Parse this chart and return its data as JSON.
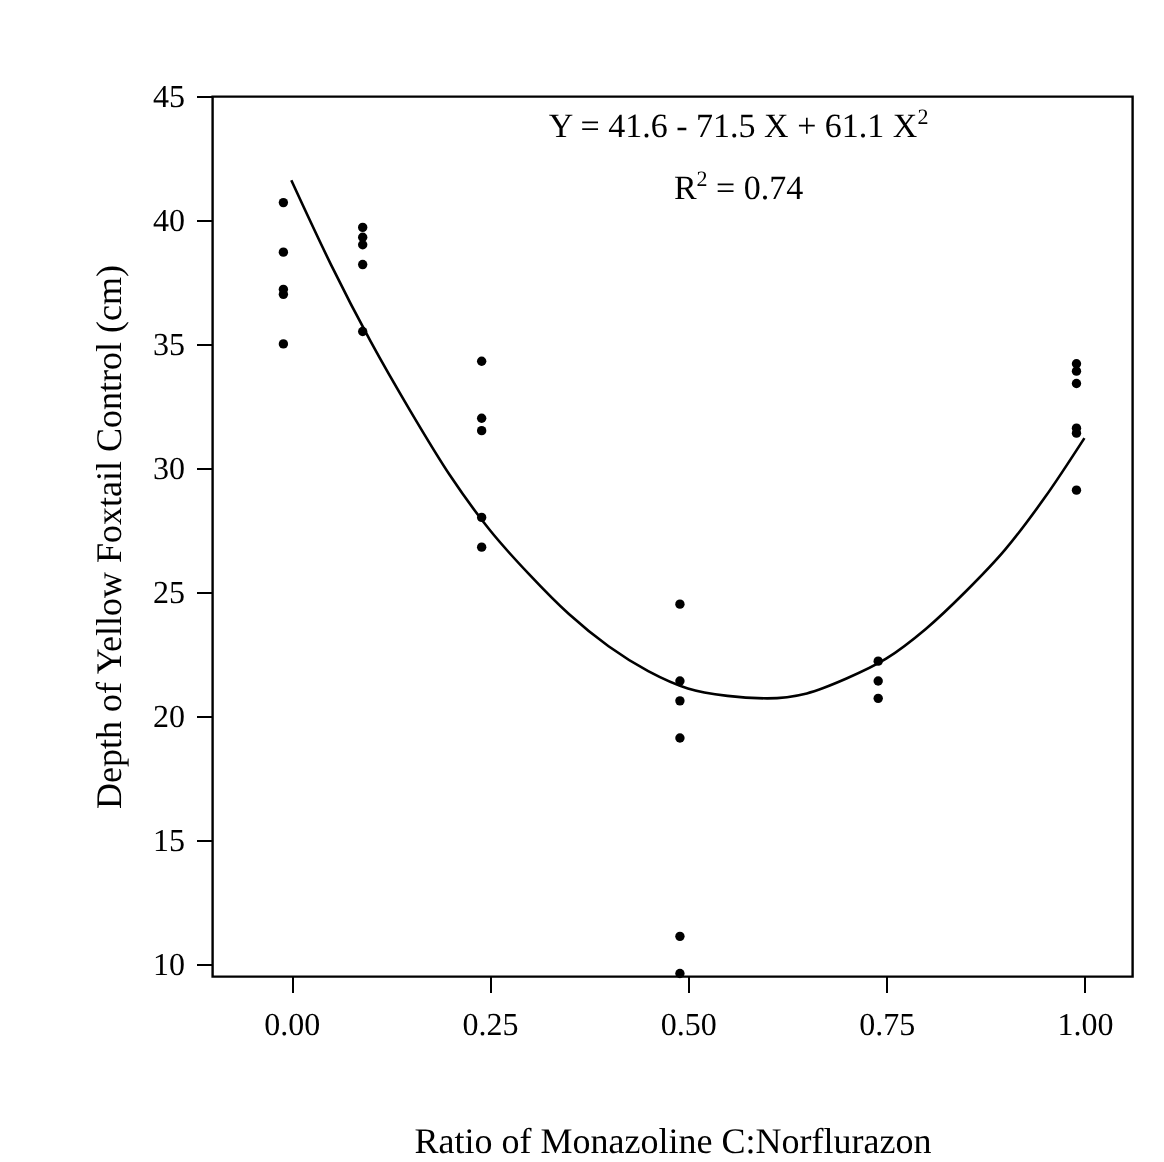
{
  "chart_data": {
    "type": "scatter",
    "xlabel": "Ratio of Monazoline C:Norflurazon",
    "ylabel": "Depth of Yellow Foxtail Control (cm)",
    "annotations": [
      "Y = 41.6 - 71.5 X + 61.1 X$^{2}$",
      "R$^{2}$ = 0.74"
    ],
    "xlim": [
      -0.1,
      1.06
    ],
    "ylim": [
      9.5,
      45
    ],
    "xticks": [
      {
        "value": 0,
        "label": "0.00"
      },
      {
        "value": 0.25,
        "label": "0.25"
      },
      {
        "value": 0.5,
        "label": "0.50"
      },
      {
        "value": 0.75,
        "label": "0.75"
      },
      {
        "value": 1,
        "label": "1.00"
      }
    ],
    "yticks": [
      10,
      15,
      20,
      25,
      30,
      35,
      40,
      45
    ],
    "grid": false,
    "marker": "circle",
    "series": [
      {
        "type": "scatter",
        "color": "#000000",
        "x": [
          -0.01,
          -0.01,
          -0.01,
          -0.01,
          -0.01,
          0.09,
          0.09,
          0.09,
          0.09,
          0.09,
          0.24,
          0.24,
          0.24,
          0.24,
          0.24,
          0.49,
          0.49,
          0.49,
          0.49,
          0.49,
          0.49,
          0.74,
          0.74,
          0.74,
          0.99,
          0.99,
          0.99,
          0.99,
          0.99,
          0.99
        ],
        "values": [
          40.7,
          38.7,
          37.2,
          37.0,
          35.0,
          39.7,
          39.3,
          39.0,
          38.2,
          35.5,
          34.3,
          32.0,
          31.5,
          28.0,
          26.8,
          24.5,
          21.4,
          20.6,
          19.1,
          11.1,
          9.6,
          22.2,
          21.4,
          20.7,
          34.2,
          33.9,
          33.4,
          31.6,
          31.4,
          29.1
        ]
      },
      {
        "type": "line",
        "color": "#000000",
        "marker": "none",
        "x": [
          0,
          0.05,
          0.1,
          0.15,
          0.2,
          0.25,
          0.3,
          0.35,
          0.4,
          0.45,
          0.5,
          0.55,
          0.6,
          0.65,
          0.7,
          0.75,
          0.8,
          0.85,
          0.9,
          0.95,
          1.0
        ],
        "values": [
          41.6,
          38.2,
          35.1,
          32.3,
          29.7,
          27.5,
          25.7,
          24.1,
          22.8,
          21.8,
          21.1,
          20.8,
          20.7,
          20.9,
          21.5,
          22.3,
          23.5,
          25.0,
          26.7,
          28.8,
          31.2
        ]
      }
    ]
  }
}
